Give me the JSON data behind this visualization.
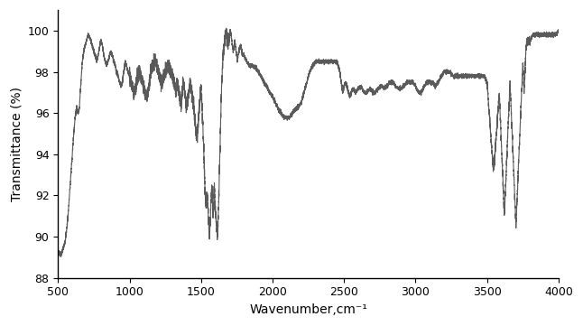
{
  "title": "",
  "xlabel": "Wavenumber,cm⁻¹",
  "ylabel": "Transmittance (%)",
  "xlim": [
    500,
    4000
  ],
  "ylim": [
    88,
    101
  ],
  "yticks": [
    88,
    90,
    92,
    94,
    96,
    98,
    100
  ],
  "xticks": [
    500,
    1000,
    1500,
    2000,
    2500,
    3000,
    3500,
    4000
  ],
  "line_color": "#5a5a5a",
  "line_width": 0.8,
  "bg_color": "#ffffff",
  "keypoints": [
    [
      500,
      89.3
    ],
    [
      510,
      89.2
    ],
    [
      520,
      89.1
    ],
    [
      530,
      89.3
    ],
    [
      540,
      89.5
    ],
    [
      550,
      89.8
    ],
    [
      560,
      90.3
    ],
    [
      570,
      91.0
    ],
    [
      580,
      92.0
    ],
    [
      590,
      93.0
    ],
    [
      600,
      94.0
    ],
    [
      610,
      95.0
    ],
    [
      620,
      95.8
    ],
    [
      630,
      96.3
    ],
    [
      640,
      96.0
    ],
    [
      650,
      96.3
    ],
    [
      660,
      97.5
    ],
    [
      670,
      98.5
    ],
    [
      680,
      99.0
    ],
    [
      690,
      99.3
    ],
    [
      700,
      99.5
    ],
    [
      710,
      99.8
    ],
    [
      720,
      99.7
    ],
    [
      730,
      99.5
    ],
    [
      740,
      99.3
    ],
    [
      750,
      99.0
    ],
    [
      760,
      98.8
    ],
    [
      770,
      98.5
    ],
    [
      780,
      98.8
    ],
    [
      790,
      99.2
    ],
    [
      800,
      99.5
    ],
    [
      810,
      99.3
    ],
    [
      820,
      98.8
    ],
    [
      830,
      98.5
    ],
    [
      840,
      98.3
    ],
    [
      850,
      98.5
    ],
    [
      860,
      98.8
    ],
    [
      870,
      99.0
    ],
    [
      880,
      98.8
    ],
    [
      890,
      98.5
    ],
    [
      900,
      98.3
    ],
    [
      910,
      98.0
    ],
    [
      920,
      97.8
    ],
    [
      930,
      97.5
    ],
    [
      940,
      97.3
    ],
    [
      950,
      97.5
    ],
    [
      960,
      98.0
    ],
    [
      970,
      98.5
    ],
    [
      980,
      98.3
    ],
    [
      990,
      98.0
    ],
    [
      1000,
      97.8
    ],
    [
      1010,
      97.5
    ],
    [
      1020,
      97.3
    ],
    [
      1030,
      97.0
    ],
    [
      1040,
      97.2
    ],
    [
      1050,
      97.5
    ],
    [
      1060,
      97.8
    ],
    [
      1070,
      98.0
    ],
    [
      1080,
      97.8
    ],
    [
      1090,
      97.5
    ],
    [
      1100,
      97.3
    ],
    [
      1110,
      97.0
    ],
    [
      1120,
      96.8
    ],
    [
      1130,
      97.0
    ],
    [
      1140,
      97.5
    ],
    [
      1150,
      98.0
    ],
    [
      1160,
      98.3
    ],
    [
      1170,
      98.5
    ],
    [
      1180,
      98.5
    ],
    [
      1190,
      98.3
    ],
    [
      1200,
      98.0
    ],
    [
      1210,
      97.8
    ],
    [
      1220,
      97.5
    ],
    [
      1230,
      97.5
    ],
    [
      1240,
      97.8
    ],
    [
      1250,
      98.0
    ],
    [
      1260,
      98.2
    ],
    [
      1270,
      98.3
    ],
    [
      1280,
      98.2
    ],
    [
      1290,
      98.0
    ],
    [
      1300,
      97.8
    ],
    [
      1310,
      97.5
    ],
    [
      1320,
      97.2
    ],
    [
      1325,
      97.0
    ],
    [
      1330,
      97.3
    ],
    [
      1335,
      97.5
    ],
    [
      1340,
      97.2
    ],
    [
      1345,
      97.0
    ],
    [
      1350,
      96.8
    ],
    [
      1355,
      96.5
    ],
    [
      1360,
      96.3
    ],
    [
      1365,
      96.8
    ],
    [
      1370,
      97.2
    ],
    [
      1375,
      97.5
    ],
    [
      1380,
      97.3
    ],
    [
      1385,
      97.0
    ],
    [
      1390,
      96.8
    ],
    [
      1395,
      96.5
    ],
    [
      1400,
      96.2
    ],
    [
      1405,
      96.5
    ],
    [
      1410,
      96.8
    ],
    [
      1415,
      97.0
    ],
    [
      1420,
      97.3
    ],
    [
      1425,
      97.5
    ],
    [
      1430,
      97.2
    ],
    [
      1435,
      97.0
    ],
    [
      1440,
      96.8
    ],
    [
      1445,
      96.5
    ],
    [
      1450,
      96.2
    ],
    [
      1455,
      95.8
    ],
    [
      1460,
      95.5
    ],
    [
      1465,
      95.0
    ],
    [
      1470,
      94.8
    ],
    [
      1475,
      95.0
    ],
    [
      1480,
      95.5
    ],
    [
      1485,
      96.0
    ],
    [
      1490,
      96.5
    ],
    [
      1495,
      97.0
    ],
    [
      1497,
      97.3
    ],
    [
      1500,
      97.2
    ],
    [
      1503,
      96.8
    ],
    [
      1506,
      96.5
    ],
    [
      1509,
      96.0
    ],
    [
      1512,
      95.5
    ],
    [
      1515,
      95.0
    ],
    [
      1518,
      94.5
    ],
    [
      1521,
      93.8
    ],
    [
      1524,
      93.0
    ],
    [
      1527,
      92.5
    ],
    [
      1530,
      92.0
    ],
    [
      1533,
      91.8
    ],
    [
      1536,
      91.5
    ],
    [
      1539,
      91.8
    ],
    [
      1542,
      92.0
    ],
    [
      1545,
      91.8
    ],
    [
      1548,
      91.5
    ],
    [
      1551,
      91.0
    ],
    [
      1554,
      90.5
    ],
    [
      1557,
      90.0
    ],
    [
      1560,
      90.2
    ],
    [
      1563,
      90.5
    ],
    [
      1566,
      91.0
    ],
    [
      1569,
      91.5
    ],
    [
      1572,
      92.0
    ],
    [
      1575,
      92.5
    ],
    [
      1578,
      92.0
    ],
    [
      1581,
      91.5
    ],
    [
      1584,
      91.0
    ],
    [
      1587,
      91.5
    ],
    [
      1590,
      92.0
    ],
    [
      1593,
      92.5
    ],
    [
      1596,
      92.0
    ],
    [
      1599,
      91.5
    ],
    [
      1602,
      91.0
    ],
    [
      1605,
      90.8
    ],
    [
      1608,
      90.5
    ],
    [
      1611,
      90.3
    ],
    [
      1614,
      90.0
    ],
    [
      1617,
      90.3
    ],
    [
      1620,
      91.0
    ],
    [
      1625,
      92.0
    ],
    [
      1630,
      93.5
    ],
    [
      1635,
      95.0
    ],
    [
      1640,
      96.5
    ],
    [
      1645,
      97.5
    ],
    [
      1650,
      98.2
    ],
    [
      1655,
      98.8
    ],
    [
      1660,
      99.2
    ],
    [
      1665,
      99.5
    ],
    [
      1670,
      99.8
    ],
    [
      1675,
      100.0
    ],
    [
      1680,
      99.8
    ],
    [
      1685,
      99.5
    ],
    [
      1690,
      99.3
    ],
    [
      1695,
      99.5
    ],
    [
      1700,
      99.8
    ],
    [
      1705,
      100.0
    ],
    [
      1710,
      99.8
    ],
    [
      1715,
      99.5
    ],
    [
      1720,
      99.2
    ],
    [
      1725,
      99.0
    ],
    [
      1730,
      99.2
    ],
    [
      1735,
      99.5
    ],
    [
      1740,
      99.3
    ],
    [
      1745,
      99.0
    ],
    [
      1750,
      98.8
    ],
    [
      1755,
      98.5
    ],
    [
      1760,
      98.8
    ],
    [
      1765,
      99.0
    ],
    [
      1770,
      99.2
    ],
    [
      1775,
      99.3
    ],
    [
      1780,
      99.2
    ],
    [
      1785,
      99.0
    ],
    [
      1790,
      98.8
    ],
    [
      1800,
      98.8
    ],
    [
      1820,
      98.5
    ],
    [
      1840,
      98.3
    ],
    [
      1860,
      98.3
    ],
    [
      1880,
      98.2
    ],
    [
      1900,
      98.0
    ],
    [
      1920,
      97.8
    ],
    [
      1940,
      97.5
    ],
    [
      1960,
      97.3
    ],
    [
      1980,
      97.0
    ],
    [
      2000,
      96.8
    ],
    [
      2020,
      96.5
    ],
    [
      2040,
      96.2
    ],
    [
      2060,
      96.0
    ],
    [
      2080,
      95.8
    ],
    [
      2100,
      95.8
    ],
    [
      2120,
      95.8
    ],
    [
      2140,
      96.0
    ],
    [
      2160,
      96.2
    ],
    [
      2180,
      96.3
    ],
    [
      2200,
      96.5
    ],
    [
      2220,
      97.0
    ],
    [
      2240,
      97.5
    ],
    [
      2260,
      98.0
    ],
    [
      2280,
      98.3
    ],
    [
      2300,
      98.5
    ],
    [
      2320,
      98.5
    ],
    [
      2340,
      98.5
    ],
    [
      2360,
      98.5
    ],
    [
      2380,
      98.5
    ],
    [
      2400,
      98.5
    ],
    [
      2420,
      98.5
    ],
    [
      2440,
      98.5
    ],
    [
      2450,
      98.5
    ],
    [
      2460,
      98.3
    ],
    [
      2470,
      98.0
    ],
    [
      2480,
      97.5
    ],
    [
      2490,
      97.0
    ],
    [
      2500,
      97.3
    ],
    [
      2510,
      97.5
    ],
    [
      2520,
      97.3
    ],
    [
      2530,
      97.0
    ],
    [
      2540,
      96.8
    ],
    [
      2550,
      97.0
    ],
    [
      2560,
      97.2
    ],
    [
      2580,
      97.0
    ],
    [
      2600,
      97.2
    ],
    [
      2620,
      97.3
    ],
    [
      2640,
      97.0
    ],
    [
      2660,
      97.0
    ],
    [
      2680,
      97.2
    ],
    [
      2700,
      97.0
    ],
    [
      2720,
      97.0
    ],
    [
      2740,
      97.2
    ],
    [
      2760,
      97.3
    ],
    [
      2780,
      97.2
    ],
    [
      2800,
      97.3
    ],
    [
      2820,
      97.5
    ],
    [
      2840,
      97.5
    ],
    [
      2860,
      97.3
    ],
    [
      2880,
      97.2
    ],
    [
      2900,
      97.2
    ],
    [
      2920,
      97.3
    ],
    [
      2940,
      97.5
    ],
    [
      2960,
      97.5
    ],
    [
      2980,
      97.5
    ],
    [
      3000,
      97.3
    ],
    [
      3020,
      97.0
    ],
    [
      3040,
      97.0
    ],
    [
      3060,
      97.3
    ],
    [
      3080,
      97.5
    ],
    [
      3100,
      97.5
    ],
    [
      3120,
      97.5
    ],
    [
      3140,
      97.3
    ],
    [
      3160,
      97.5
    ],
    [
      3180,
      97.8
    ],
    [
      3200,
      98.0
    ],
    [
      3220,
      98.0
    ],
    [
      3240,
      98.0
    ],
    [
      3260,
      97.8
    ],
    [
      3280,
      97.8
    ],
    [
      3300,
      97.8
    ],
    [
      3320,
      97.8
    ],
    [
      3340,
      97.8
    ],
    [
      3360,
      97.8
    ],
    [
      3380,
      97.8
    ],
    [
      3400,
      97.8
    ],
    [
      3420,
      97.8
    ],
    [
      3440,
      97.8
    ],
    [
      3460,
      97.8
    ],
    [
      3480,
      97.8
    ],
    [
      3500,
      97.5
    ],
    [
      3505,
      97.0
    ],
    [
      3510,
      96.5
    ],
    [
      3515,
      96.0
    ],
    [
      3520,
      95.5
    ],
    [
      3525,
      95.0
    ],
    [
      3530,
      94.5
    ],
    [
      3535,
      94.0
    ],
    [
      3540,
      93.5
    ],
    [
      3545,
      93.2
    ],
    [
      3550,
      93.5
    ],
    [
      3555,
      94.0
    ],
    [
      3560,
      94.5
    ],
    [
      3565,
      95.0
    ],
    [
      3570,
      95.5
    ],
    [
      3575,
      96.0
    ],
    [
      3580,
      96.5
    ],
    [
      3585,
      97.0
    ],
    [
      3588,
      96.5
    ],
    [
      3591,
      96.0
    ],
    [
      3594,
      95.5
    ],
    [
      3597,
      95.0
    ],
    [
      3600,
      94.5
    ],
    [
      3603,
      94.0
    ],
    [
      3606,
      93.5
    ],
    [
      3609,
      93.0
    ],
    [
      3612,
      92.5
    ],
    [
      3615,
      92.0
    ],
    [
      3618,
      91.5
    ],
    [
      3621,
      91.0
    ],
    [
      3624,
      91.5
    ],
    [
      3627,
      92.0
    ],
    [
      3630,
      92.5
    ],
    [
      3633,
      93.0
    ],
    [
      3636,
      93.5
    ],
    [
      3639,
      94.0
    ],
    [
      3642,
      94.5
    ],
    [
      3645,
      95.0
    ],
    [
      3648,
      95.5
    ],
    [
      3651,
      96.0
    ],
    [
      3654,
      96.5
    ],
    [
      3657,
      97.0
    ],
    [
      3660,
      97.5
    ],
    [
      3663,
      97.0
    ],
    [
      3666,
      96.5
    ],
    [
      3669,
      96.0
    ],
    [
      3672,
      95.5
    ],
    [
      3675,
      95.0
    ],
    [
      3678,
      94.5
    ],
    [
      3681,
      94.0
    ],
    [
      3684,
      93.5
    ],
    [
      3687,
      93.0
    ],
    [
      3690,
      92.5
    ],
    [
      3693,
      92.0
    ],
    [
      3696,
      91.5
    ],
    [
      3699,
      91.0
    ],
    [
      3702,
      90.5
    ],
    [
      3705,
      91.0
    ],
    [
      3708,
      91.5
    ],
    [
      3711,
      92.0
    ],
    [
      3714,
      92.5
    ],
    [
      3717,
      93.0
    ],
    [
      3720,
      93.5
    ],
    [
      3723,
      94.0
    ],
    [
      3726,
      94.5
    ],
    [
      3729,
      95.0
    ],
    [
      3732,
      95.5
    ],
    [
      3735,
      96.0
    ],
    [
      3738,
      96.5
    ],
    [
      3741,
      97.0
    ],
    [
      3744,
      97.5
    ],
    [
      3747,
      98.0
    ],
    [
      3750,
      98.5
    ],
    [
      3753,
      98.0
    ],
    [
      3756,
      97.5
    ],
    [
      3759,
      97.0
    ],
    [
      3762,
      97.5
    ],
    [
      3765,
      98.0
    ],
    [
      3768,
      98.5
    ],
    [
      3771,
      99.0
    ],
    [
      3774,
      99.2
    ],
    [
      3777,
      99.5
    ],
    [
      3780,
      99.3
    ],
    [
      3783,
      99.5
    ],
    [
      3790,
      99.5
    ],
    [
      3800,
      99.5
    ],
    [
      3820,
      99.8
    ],
    [
      3840,
      99.8
    ],
    [
      3860,
      99.8
    ],
    [
      3880,
      99.8
    ],
    [
      3900,
      99.8
    ],
    [
      3920,
      99.8
    ],
    [
      3940,
      99.8
    ],
    [
      3960,
      99.8
    ],
    [
      3980,
      99.8
    ],
    [
      4000,
      100.0
    ]
  ]
}
